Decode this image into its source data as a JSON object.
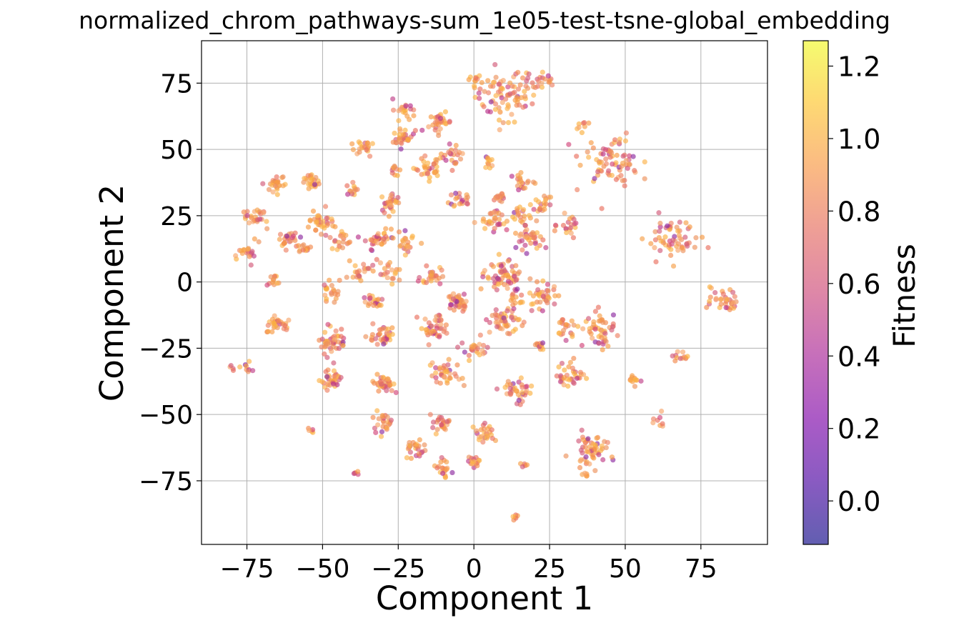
{
  "chart_data": {
    "type": "scatter",
    "title": "normalized_chrom_pathways-sum_1e05-test-tsne-global_embedding",
    "xlabel": "Component 1",
    "ylabel": "Component 2",
    "xlim": [
      -90,
      97
    ],
    "ylim": [
      -99,
      91
    ],
    "xticks": [
      -75,
      -50,
      -25,
      0,
      25,
      50,
      75
    ],
    "yticks": [
      -75,
      -50,
      -25,
      0,
      25,
      50,
      75
    ],
    "xtick_labels": [
      "−75",
      "−50",
      "−25",
      "0",
      "25",
      "50",
      "75"
    ],
    "ytick_labels": [
      "−75",
      "−50",
      "−25",
      "0",
      "25",
      "50",
      "75"
    ],
    "grid": true,
    "colorbar": {
      "label": "Fitness",
      "colormap": "plasma",
      "range": [
        -0.12,
        1.27
      ],
      "ticks": [
        0.0,
        0.2,
        0.4,
        0.6,
        0.8,
        1.0,
        1.2
      ],
      "tick_labels": [
        "0.0",
        "0.2",
        "0.4",
        "0.6",
        "0.8",
        "1.0",
        "1.2"
      ]
    },
    "marker_alpha": 0.65,
    "clusters": [
      {
        "x": 10,
        "y": 70,
        "r": 8,
        "n": 80
      },
      {
        "x": 0,
        "y": 76,
        "r": 2,
        "n": 10
      },
      {
        "x": 20,
        "y": 76,
        "r": 4,
        "n": 15
      },
      {
        "x": 25,
        "y": 76,
        "r": 2,
        "n": 8
      },
      {
        "x": -23,
        "y": 65,
        "r": 3,
        "n": 20
      },
      {
        "x": -23,
        "y": 54,
        "r": 3,
        "n": 30
      },
      {
        "x": -11,
        "y": 60,
        "r": 3,
        "n": 30
      },
      {
        "x": -7,
        "y": 48,
        "r": 3,
        "n": 20
      },
      {
        "x": -37,
        "y": 51,
        "r": 3,
        "n": 20
      },
      {
        "x": -15,
        "y": 43,
        "r": 4,
        "n": 35
      },
      {
        "x": -27,
        "y": 42,
        "r": 2,
        "n": 10
      },
      {
        "x": 5,
        "y": 45,
        "r": 2,
        "n": 10
      },
      {
        "x": 35,
        "y": 59,
        "r": 2,
        "n": 8
      },
      {
        "x": 45,
        "y": 47,
        "r": 8,
        "n": 75
      },
      {
        "x": -66,
        "y": 37,
        "r": 3,
        "n": 25
      },
      {
        "x": -53,
        "y": 37,
        "r": 3,
        "n": 25
      },
      {
        "x": -40,
        "y": 35,
        "r": 2,
        "n": 12
      },
      {
        "x": -28,
        "y": 30,
        "r": 3,
        "n": 30
      },
      {
        "x": -4,
        "y": 32,
        "r": 3,
        "n": 20
      },
      {
        "x": 8,
        "y": 32,
        "r": 2,
        "n": 15
      },
      {
        "x": 16,
        "y": 37,
        "r": 3,
        "n": 20
      },
      {
        "x": 22,
        "y": 30,
        "r": 3,
        "n": 20
      },
      {
        "x": -72,
        "y": 24,
        "r": 3,
        "n": 25
      },
      {
        "x": -51,
        "y": 23,
        "r": 4,
        "n": 35
      },
      {
        "x": -61,
        "y": 16,
        "r": 3,
        "n": 25
      },
      {
        "x": -44,
        "y": 16,
        "r": 3,
        "n": 20
      },
      {
        "x": -31,
        "y": 16,
        "r": 4,
        "n": 35
      },
      {
        "x": 7,
        "y": 23,
        "r": 4,
        "n": 30
      },
      {
        "x": 16,
        "y": 25,
        "r": 3,
        "n": 20
      },
      {
        "x": 18,
        "y": 16,
        "r": 4,
        "n": 35
      },
      {
        "x": 31,
        "y": 21,
        "r": 3,
        "n": 20
      },
      {
        "x": 66,
        "y": 16,
        "r": 7,
        "n": 60
      },
      {
        "x": -74,
        "y": 11,
        "r": 3,
        "n": 20
      },
      {
        "x": -56,
        "y": 12,
        "r": 2,
        "n": 12
      },
      {
        "x": -22,
        "y": 14,
        "r": 3,
        "n": 20
      },
      {
        "x": -14,
        "y": 2,
        "r": 3,
        "n": 25
      },
      {
        "x": -38,
        "y": 4,
        "r": 3,
        "n": 20
      },
      {
        "x": -28,
        "y": 4,
        "r": 3,
        "n": 20
      },
      {
        "x": 10,
        "y": 2,
        "r": 5,
        "n": 60
      },
      {
        "x": -66,
        "y": 0,
        "r": 2,
        "n": 12
      },
      {
        "x": -48,
        "y": -3,
        "r": 3,
        "n": 20
      },
      {
        "x": 23,
        "y": -5,
        "r": 4,
        "n": 35
      },
      {
        "x": -5,
        "y": -8,
        "r": 3,
        "n": 35
      },
      {
        "x": -33,
        "y": -7,
        "r": 3,
        "n": 20
      },
      {
        "x": 14,
        "y": -6,
        "r": 4,
        "n": 15
      },
      {
        "x": 83,
        "y": -7,
        "r": 4,
        "n": 35
      },
      {
        "x": -65,
        "y": -16,
        "r": 3,
        "n": 30
      },
      {
        "x": -47,
        "y": -22,
        "r": 4,
        "n": 45
      },
      {
        "x": -30,
        "y": -21,
        "r": 4,
        "n": 35
      },
      {
        "x": -13,
        "y": -17,
        "r": 4,
        "n": 40
      },
      {
        "x": 10,
        "y": -15,
        "r": 4,
        "n": 45
      },
      {
        "x": 30,
        "y": -18,
        "r": 3,
        "n": 20
      },
      {
        "x": 42,
        "y": -18,
        "r": 5,
        "n": 50
      },
      {
        "x": 0,
        "y": -26,
        "r": 3,
        "n": 25
      },
      {
        "x": 22,
        "y": -24,
        "r": 2,
        "n": 12
      },
      {
        "x": -47,
        "y": -37,
        "r": 3,
        "n": 35
      },
      {
        "x": -30,
        "y": -38,
        "r": 3,
        "n": 35
      },
      {
        "x": -9,
        "y": -35,
        "r": 4,
        "n": 35
      },
      {
        "x": 15,
        "y": -41,
        "r": 4,
        "n": 35
      },
      {
        "x": 32,
        "y": -35,
        "r": 4,
        "n": 35
      },
      {
        "x": 53,
        "y": -37,
        "r": 2,
        "n": 12
      },
      {
        "x": 68,
        "y": -28,
        "r": 2,
        "n": 12
      },
      {
        "x": -76,
        "y": -32,
        "r": 2,
        "n": 8
      },
      {
        "x": -80,
        "y": -33,
        "r": 1,
        "n": 4
      },
      {
        "x": -54,
        "y": -56,
        "r": 1,
        "n": 5
      },
      {
        "x": -30,
        "y": -53,
        "r": 3,
        "n": 25
      },
      {
        "x": -11,
        "y": -53,
        "r": 3,
        "n": 25
      },
      {
        "x": 4,
        "y": -57,
        "r": 3,
        "n": 25
      },
      {
        "x": -19,
        "y": -63,
        "r": 3,
        "n": 25
      },
      {
        "x": 39,
        "y": -63,
        "r": 5,
        "n": 55
      },
      {
        "x": 61,
        "y": -52,
        "r": 2,
        "n": 8
      },
      {
        "x": -10,
        "y": -71,
        "r": 3,
        "n": 20
      },
      {
        "x": 0,
        "y": -68,
        "r": 2,
        "n": 15
      },
      {
        "x": -39,
        "y": -72,
        "r": 1,
        "n": 5
      },
      {
        "x": 14,
        "y": -89,
        "r": 1,
        "n": 6
      },
      {
        "x": 16,
        "y": -69,
        "r": 1,
        "n": 5
      },
      {
        "x": 37,
        "y": -73,
        "r": 1,
        "n": 5
      }
    ]
  }
}
